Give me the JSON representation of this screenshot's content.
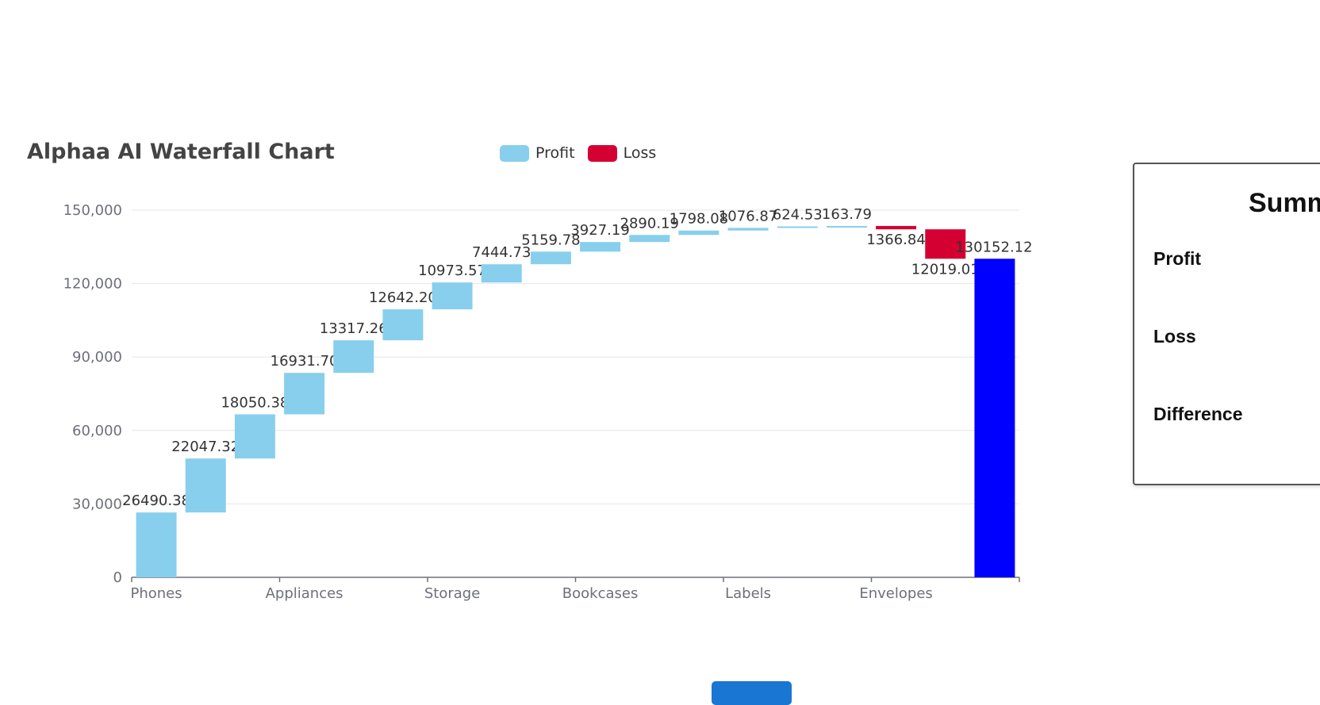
{
  "title": "Alphaa AI Waterfall Chart",
  "legend": [
    {
      "label": "Profit",
      "color": "#87cfed"
    },
    {
      "label": "Loss",
      "color": "#d50032"
    }
  ],
  "summary": {
    "title": "Summ",
    "rows": [
      "Profit",
      "Loss",
      "Difference"
    ]
  },
  "chart_data": {
    "type": "bar",
    "title": "Alphaa AI Waterfall Chart",
    "ylim": [
      0,
      150000
    ],
    "yticks": [
      "0",
      "30,000",
      "60,000",
      "90,000",
      "120,000",
      "150,000"
    ],
    "x_tick_labels": [
      "Phones",
      "Appliances",
      "Storage",
      "Bookcases",
      "Labels",
      "Envelopes"
    ],
    "grid": true,
    "legend_position": "top",
    "colors": {
      "profit": "#87cfed",
      "loss": "#d50032",
      "total": "#0000ff"
    },
    "series": [
      {
        "name": "Profit",
        "values": [
          26490.38,
          22047.32,
          18050.38,
          16931.7,
          13317.26,
          12642.2,
          10973.57,
          7444.73,
          5159.78,
          3927.19,
          2890.19,
          1798.08,
          1076.87,
          624.53,
          163.79
        ]
      },
      {
        "name": "Loss",
        "values": [
          1366.84,
          12019.01
        ]
      }
    ],
    "bars": [
      {
        "value": 26490.38,
        "label": "26490.38",
        "kind": "profit"
      },
      {
        "value": 22047.32,
        "label": "22047.32",
        "kind": "profit"
      },
      {
        "value": 18050.38,
        "label": "18050.38",
        "kind": "profit"
      },
      {
        "value": 16931.7,
        "label": "16931.70",
        "kind": "profit"
      },
      {
        "value": 13317.26,
        "label": "13317.26",
        "kind": "profit"
      },
      {
        "value": 12642.2,
        "label": "12642.20",
        "kind": "profit"
      },
      {
        "value": 10973.57,
        "label": "10973.57",
        "kind": "profit"
      },
      {
        "value": 7444.73,
        "label": "7444.73",
        "kind": "profit"
      },
      {
        "value": 5159.78,
        "label": "5159.78",
        "kind": "profit"
      },
      {
        "value": 3927.19,
        "label": "3927.19",
        "kind": "profit"
      },
      {
        "value": 2890.19,
        "label": "2890.19",
        "kind": "profit"
      },
      {
        "value": 1798.08,
        "label": "1798.08",
        "kind": "profit"
      },
      {
        "value": 1076.87,
        "label": "1076.87",
        "kind": "profit"
      },
      {
        "value": 624.53,
        "label": "624.53",
        "kind": "profit"
      },
      {
        "value": 163.79,
        "label": "163.79",
        "kind": "profit"
      },
      {
        "value": 1366.84,
        "label": "1366.84",
        "kind": "loss"
      },
      {
        "value": 12019.01,
        "label": "12019.01",
        "kind": "loss"
      },
      {
        "value": 130152.12,
        "label": "130152.12",
        "kind": "total"
      }
    ]
  }
}
